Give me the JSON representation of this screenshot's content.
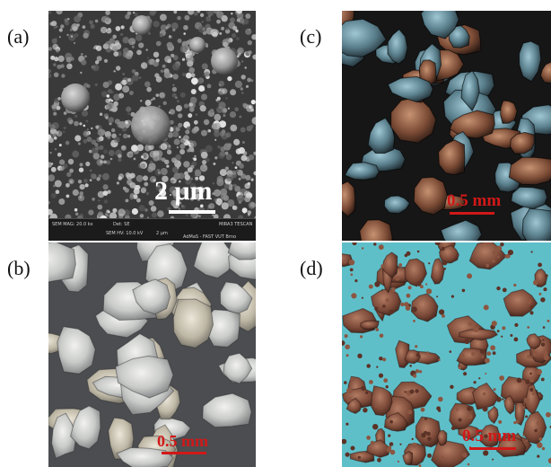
{
  "panels": [
    {
      "id": "a",
      "label": "(a)",
      "type": "sem",
      "scale_text": "2 μm",
      "sem_footer": {
        "mag": "SEM MAG: 20.0 kx",
        "det": "Det: SE",
        "hv": "SEM HV: 10.0 kV",
        "scale": "2 μm",
        "brand": "MIRA3 TESCAN",
        "lab": "AdMaS - FAST VUT Brno"
      }
    },
    {
      "id": "b",
      "label": "(b)",
      "type": "optical",
      "scale_text": "0.5 mm"
    },
    {
      "id": "c",
      "label": "(c)",
      "type": "optical",
      "scale_text": "0.5 mm"
    },
    {
      "id": "d",
      "label": "(d)",
      "type": "optical",
      "scale_text": "0.5 mm"
    }
  ],
  "colors": {
    "scale_red": "#d11818",
    "scale_white": "#ffffff"
  }
}
